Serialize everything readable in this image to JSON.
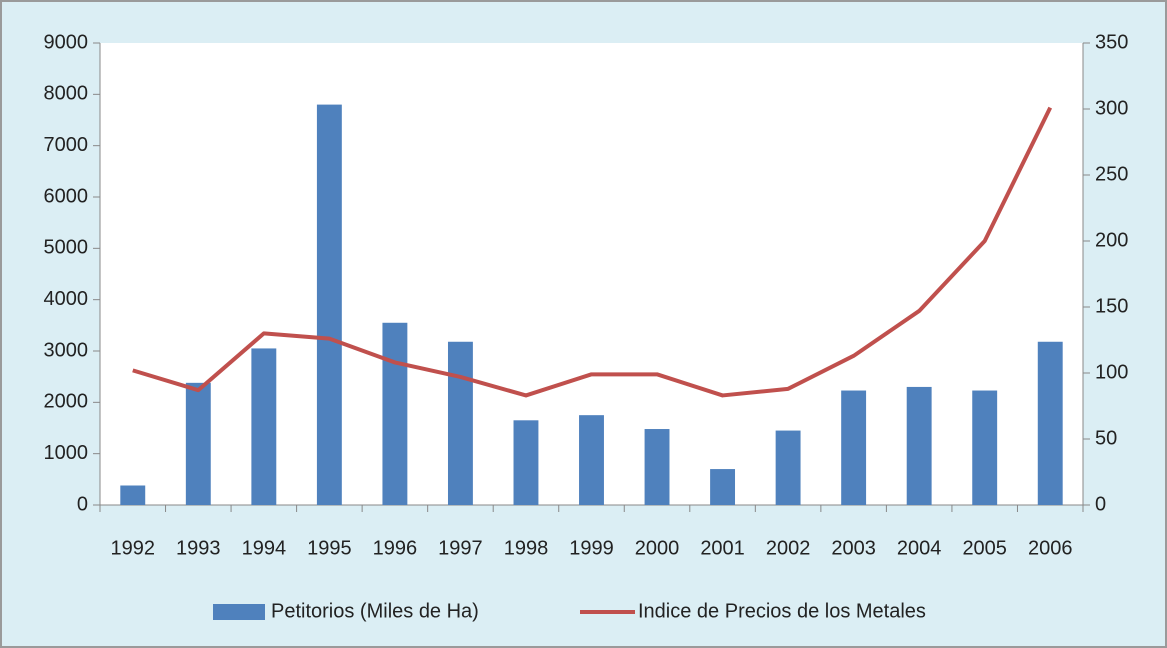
{
  "chart_data": {
    "type": "bar",
    "categories": [
      "1992",
      "1993",
      "1994",
      "1995",
      "1996",
      "1997",
      "1998",
      "1999",
      "2000",
      "2001",
      "2002",
      "2003",
      "2004",
      "2005",
      "2006"
    ],
    "series": [
      {
        "name": "Petitorios (Miles de Ha)",
        "type": "bar",
        "color": "#4f81bd",
        "values": [
          380,
          2380,
          3050,
          7800,
          3550,
          3180,
          1650,
          1750,
          1480,
          700,
          1450,
          2230,
          2300,
          2230,
          3180
        ]
      },
      {
        "name": "Indice de Precios de los Metales",
        "type": "line",
        "axis": "y2",
        "color": "#c0504d",
        "values": [
          102,
          87,
          130,
          126,
          108,
          97,
          83,
          99,
          99,
          83,
          88,
          113,
          147,
          200,
          301
        ]
      }
    ],
    "ylim": [
      0,
      9000
    ],
    "yticks": [
      0,
      1000,
      2000,
      3000,
      4000,
      5000,
      6000,
      7000,
      8000,
      9000
    ],
    "y2lim": [
      0,
      350
    ],
    "y2ticks": [
      0,
      50,
      100,
      150,
      200,
      250,
      300,
      350
    ],
    "legend": "bottom",
    "grid": false
  }
}
